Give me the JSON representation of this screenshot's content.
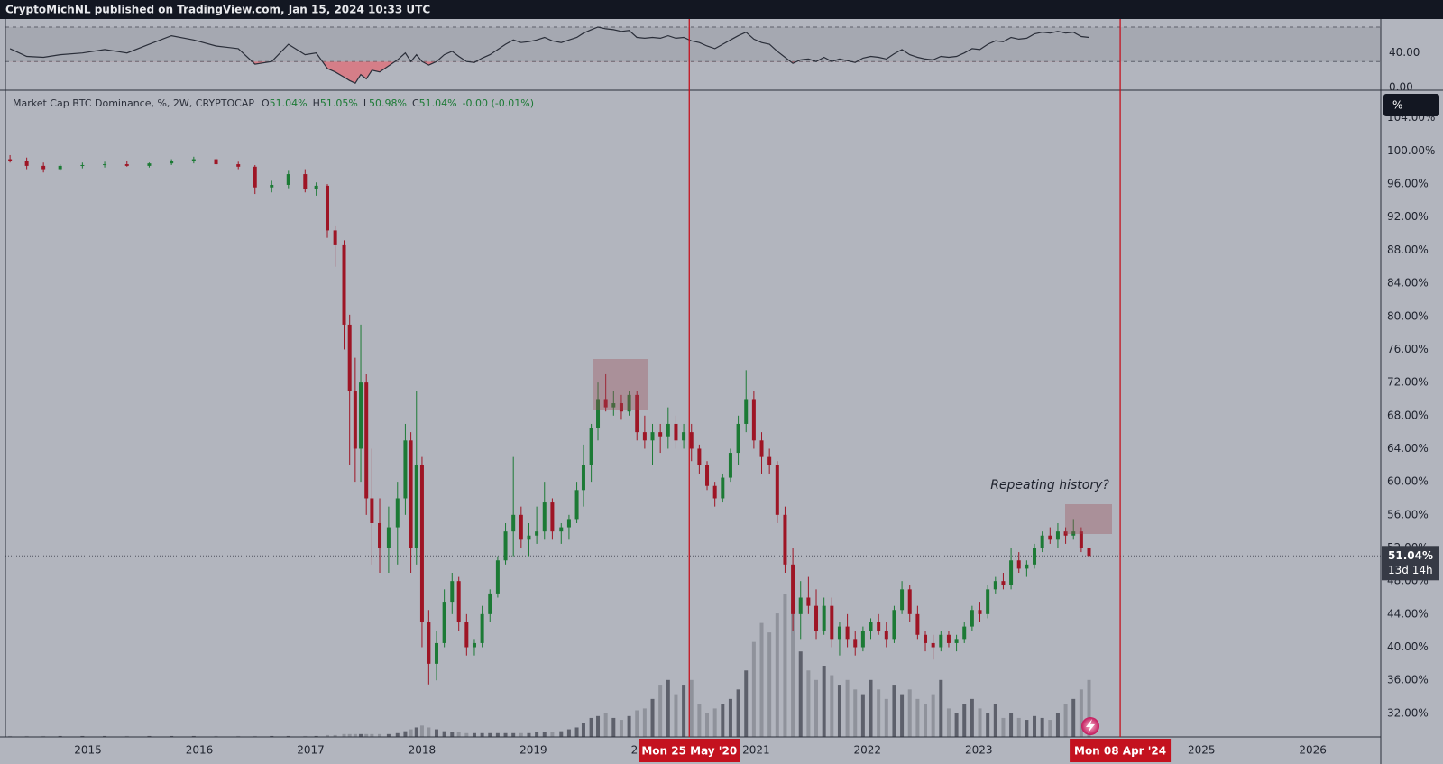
{
  "header": "CryptoMichNL published on TradingView.com, Jan 15, 2024 10:33 UTC",
  "chart_data": {
    "type": "candlestick",
    "symbol": "Market Cap BTC Dominance, %, 2W, CRYPTOCAP",
    "legend_values": [
      {
        "key": "O",
        "text": "51.04%"
      },
      {
        "key": "H",
        "text": "51.05%"
      },
      {
        "key": "L",
        "text": "50.98%"
      },
      {
        "key": "C",
        "text": "51.04%"
      }
    ],
    "change": "-0.00 (-0.01%)",
    "scale_button": "%",
    "x": [
      2014.3,
      2014.45,
      2014.6,
      2014.75,
      2014.95,
      2015.15,
      2015.35,
      2015.55,
      2015.75,
      2015.95,
      2016.15,
      2016.35,
      2016.5,
      2016.65,
      2016.8,
      2016.95,
      2017.05,
      2017.15,
      2017.22,
      2017.3,
      2017.35,
      2017.4,
      2017.45,
      2017.5,
      2017.55,
      2017.62,
      2017.7,
      2017.78,
      2017.85,
      2017.9,
      2017.95,
      2018.0,
      2018.06,
      2018.13,
      2018.2,
      2018.27,
      2018.33,
      2018.4,
      2018.47,
      2018.54,
      2018.61,
      2018.68,
      2018.75,
      2018.82,
      2018.89,
      2018.96,
      2019.03,
      2019.1,
      2019.17,
      2019.25,
      2019.32,
      2019.39,
      2019.45,
      2019.52,
      2019.58,
      2019.65,
      2019.72,
      2019.79,
      2019.86,
      2019.93,
      2020.0,
      2020.07,
      2020.14,
      2020.21,
      2020.28,
      2020.35,
      2020.42,
      2020.49,
      2020.56,
      2020.63,
      2020.7,
      2020.77,
      2020.84,
      2020.91,
      2020.98,
      2021.05,
      2021.12,
      2021.19,
      2021.26,
      2021.33,
      2021.4,
      2021.47,
      2021.54,
      2021.61,
      2021.68,
      2021.75,
      2021.82,
      2021.89,
      2021.96,
      2022.03,
      2022.1,
      2022.17,
      2022.24,
      2022.31,
      2022.38,
      2022.45,
      2022.52,
      2022.59,
      2022.66,
      2022.73,
      2022.8,
      2022.87,
      2022.94,
      2023.01,
      2023.08,
      2023.15,
      2023.22,
      2023.29,
      2023.36,
      2023.43,
      2023.5,
      2023.57,
      2023.64,
      2023.71,
      2023.78,
      2023.85,
      2023.92,
      2023.99
    ],
    "candles": [
      [
        99,
        99.5,
        98.6,
        98.8
      ],
      [
        98.8,
        99.2,
        97.8,
        98.2
      ],
      [
        98.2,
        98.6,
        97.4,
        97.8
      ],
      [
        97.8,
        98.4,
        97.6,
        98.2
      ],
      [
        98.2,
        98.6,
        97.9,
        98.3
      ],
      [
        98.3,
        98.7,
        98.0,
        98.4
      ],
      [
        98.4,
        98.8,
        98.1,
        98.2
      ],
      [
        98.2,
        98.6,
        98.0,
        98.5
      ],
      [
        98.5,
        99.0,
        98.3,
        98.8
      ],
      [
        98.8,
        99.3,
        98.5,
        99.0
      ],
      [
        99.0,
        99.2,
        98.2,
        98.4
      ],
      [
        98.4,
        98.7,
        97.8,
        98.1
      ],
      [
        98.1,
        98.3,
        94.8,
        95.6
      ],
      [
        95.6,
        96.4,
        95.0,
        95.9
      ],
      [
        95.9,
        97.6,
        95.5,
        97.2
      ],
      [
        97.2,
        97.8,
        95.0,
        95.4
      ],
      [
        95.4,
        96.2,
        94.6,
        95.8
      ],
      [
        95.8,
        96.0,
        89.5,
        90.4
      ],
      [
        90.4,
        91.0,
        86.0,
        88.6
      ],
      [
        88.6,
        89.2,
        76.0,
        79.0
      ],
      [
        79.0,
        80.2,
        62.0,
        71.0
      ],
      [
        71.0,
        75.0,
        60.0,
        64.0
      ],
      [
        64.0,
        79.0,
        60.0,
        72.0
      ],
      [
        72.0,
        73.0,
        56.0,
        58.0
      ],
      [
        58.0,
        64.0,
        50.0,
        55.0
      ],
      [
        55.0,
        58.0,
        49.0,
        52.0
      ],
      [
        52.0,
        57.0,
        49.0,
        54.5
      ],
      [
        54.5,
        60.0,
        50.0,
        58.0
      ],
      [
        58.0,
        67.0,
        56.0,
        65.0
      ],
      [
        65.0,
        66.0,
        49.0,
        52.0
      ],
      [
        52.0,
        71.0,
        50.0,
        62.0
      ],
      [
        62.0,
        63.0,
        40.0,
        43.0
      ],
      [
        43.0,
        44.5,
        35.5,
        38.0
      ],
      [
        38.0,
        42.0,
        36.0,
        40.5
      ],
      [
        40.5,
        47.0,
        40.0,
        45.5
      ],
      [
        45.5,
        49.0,
        44.0,
        48.0
      ],
      [
        48.0,
        48.5,
        42.0,
        43.0
      ],
      [
        43.0,
        44.0,
        39.0,
        40.0
      ],
      [
        40.0,
        41.0,
        39.0,
        40.5
      ],
      [
        40.5,
        45.0,
        40.0,
        44.0
      ],
      [
        44.0,
        47.0,
        43.0,
        46.5
      ],
      [
        46.5,
        51.0,
        46.0,
        50.5
      ],
      [
        50.5,
        55.0,
        50.0,
        54.0
      ],
      [
        54.0,
        63.0,
        51.0,
        56.0
      ],
      [
        56.0,
        57.0,
        52.0,
        53.0
      ],
      [
        53.0,
        55.0,
        51.0,
        53.5
      ],
      [
        53.5,
        57.0,
        52.5,
        54.0
      ],
      [
        54.0,
        60.0,
        53.0,
        57.5
      ],
      [
        57.5,
        58.0,
        53.0,
        54.0
      ],
      [
        54.0,
        55.0,
        52.5,
        54.5
      ],
      [
        54.5,
        56.0,
        53.0,
        55.5
      ],
      [
        55.5,
        60.0,
        55.0,
        59.0
      ],
      [
        59.0,
        64.5,
        57.0,
        62.0
      ],
      [
        62.0,
        67.0,
        60.0,
        66.5
      ],
      [
        66.5,
        72.0,
        65.0,
        70.0
      ],
      [
        70.0,
        73.0,
        68.5,
        69.0
      ],
      [
        69.0,
        71.0,
        68.0,
        69.5
      ],
      [
        69.5,
        70.5,
        67.5,
        68.5
      ],
      [
        68.5,
        71.0,
        68.0,
        70.5
      ],
      [
        70.5,
        71.0,
        65.0,
        66.0
      ],
      [
        66.0,
        68.0,
        64.0,
        65.0
      ],
      [
        65.0,
        67.0,
        62.0,
        66.0
      ],
      [
        66.0,
        67.0,
        63.5,
        65.5
      ],
      [
        65.5,
        69.0,
        64.0,
        67.0
      ],
      [
        67.0,
        68.0,
        64.0,
        65.0
      ],
      [
        65.0,
        67.0,
        64.0,
        66.0
      ],
      [
        66.0,
        67.0,
        62.5,
        64.0
      ],
      [
        64.0,
        64.5,
        61.0,
        62.0
      ],
      [
        62.0,
        62.5,
        59.0,
        59.5
      ],
      [
        59.5,
        60.0,
        57.0,
        58.0
      ],
      [
        58.0,
        61.0,
        57.5,
        60.5
      ],
      [
        60.5,
        64.0,
        60.0,
        63.5
      ],
      [
        63.5,
        68.0,
        62.0,
        67.0
      ],
      [
        67.0,
        73.5,
        66.0,
        70.0
      ],
      [
        70.0,
        71.0,
        64.0,
        65.0
      ],
      [
        65.0,
        66.0,
        61.0,
        63.0
      ],
      [
        63.0,
        64.0,
        61.0,
        62.0
      ],
      [
        62.0,
        62.5,
        55.0,
        56.0
      ],
      [
        56.0,
        57.0,
        49.0,
        50.0
      ],
      [
        50.0,
        52.0,
        42.0,
        44.0
      ],
      [
        44.0,
        48.0,
        41.0,
        46.0
      ],
      [
        46.0,
        48.5,
        44.0,
        45.0
      ],
      [
        45.0,
        47.0,
        41.0,
        42.0
      ],
      [
        42.0,
        46.0,
        41.5,
        45.0
      ],
      [
        45.0,
        46.0,
        40.0,
        41.0
      ],
      [
        41.0,
        43.0,
        39.0,
        42.5
      ],
      [
        42.5,
        44.0,
        40.0,
        41.0
      ],
      [
        41.0,
        42.0,
        39.0,
        40.0
      ],
      [
        40.0,
        42.5,
        39.5,
        42.0
      ],
      [
        42.0,
        43.5,
        41.0,
        43.0
      ],
      [
        43.0,
        44.0,
        41.5,
        42.0
      ],
      [
        42.0,
        43.0,
        40.0,
        41.0
      ],
      [
        41.0,
        45.0,
        40.5,
        44.5
      ],
      [
        44.5,
        48.0,
        44.0,
        47.0
      ],
      [
        47.0,
        47.5,
        43.0,
        44.0
      ],
      [
        44.0,
        45.0,
        41.0,
        41.5
      ],
      [
        41.5,
        42.0,
        39.5,
        40.5
      ],
      [
        40.5,
        41.5,
        38.5,
        40.0
      ],
      [
        40.0,
        42.0,
        39.5,
        41.5
      ],
      [
        41.5,
        42.0,
        40.0,
        40.5
      ],
      [
        40.5,
        41.5,
        39.5,
        41.0
      ],
      [
        41.0,
        43.0,
        40.5,
        42.5
      ],
      [
        42.5,
        45.0,
        42.0,
        44.5
      ],
      [
        44.5,
        45.5,
        43.0,
        44.0
      ],
      [
        44.0,
        47.5,
        43.5,
        47.0
      ],
      [
        47.0,
        48.5,
        46.5,
        48.0
      ],
      [
        48.0,
        49.0,
        47.0,
        47.5
      ],
      [
        47.5,
        52.0,
        47.0,
        50.5
      ],
      [
        50.5,
        51.5,
        49.0,
        49.5
      ],
      [
        49.5,
        50.5,
        48.5,
        50.0
      ],
      [
        50.0,
        52.5,
        49.5,
        52.0
      ],
      [
        52.0,
        54.0,
        51.5,
        53.5
      ],
      [
        53.5,
        54.5,
        52.5,
        53.0
      ],
      [
        53.0,
        55.0,
        52.0,
        54.0
      ],
      [
        54.0,
        54.5,
        52.5,
        53.5
      ],
      [
        53.5,
        55.5,
        53.0,
        54.0
      ],
      [
        54.0,
        54.5,
        51.5,
        52.0
      ],
      [
        52.0,
        52.3,
        50.9,
        51.04
      ]
    ],
    "colors": {
      "up": "#1c7a35",
      "down": "#9e1525"
    },
    "volume": [
      1,
      1,
      1,
      1,
      1,
      1,
      1,
      1,
      1,
      1,
      1,
      1,
      1,
      1,
      1,
      1,
      1,
      2,
      2,
      3,
      3,
      3,
      3,
      3,
      3,
      3,
      3,
      4,
      6,
      8,
      10,
      12,
      10,
      8,
      6,
      5,
      5,
      4,
      4,
      4,
      4,
      4,
      4,
      4,
      4,
      4,
      5,
      5,
      5,
      6,
      8,
      10,
      15,
      20,
      22,
      25,
      20,
      18,
      22,
      28,
      30,
      40,
      55,
      60,
      45,
      55,
      60,
      35,
      25,
      30,
      35,
      40,
      50,
      70,
      100,
      120,
      110,
      130,
      150,
      140,
      90,
      70,
      60,
      75,
      65,
      55,
      60,
      50,
      45,
      60,
      50,
      40,
      55,
      45,
      50,
      40,
      35,
      45,
      60,
      30,
      25,
      35,
      40,
      30,
      25,
      35,
      20,
      25,
      20,
      18,
      22,
      20,
      18,
      25,
      35,
      40,
      50,
      60
    ],
    "volume_colors": {
      "up": "#5d606b",
      "down": "#8f929b"
    },
    "xlim": [
      2014.21,
      2026.61
    ],
    "xticks": [
      2015,
      2016,
      2017,
      2018,
      2019,
      2020,
      2021,
      2022,
      2023,
      2024,
      2025,
      2026
    ],
    "ylim": [
      29.15,
      107.35
    ],
    "yticks": [
      {
        "value": 32,
        "label": "32.00%"
      },
      {
        "value": 36,
        "label": "36.00%"
      },
      {
        "value": 40,
        "label": "40.00%"
      },
      {
        "value": 44,
        "label": "44.00%"
      },
      {
        "value": 48,
        "label": "48.00%"
      },
      {
        "value": 52,
        "label": "52.00%"
      },
      {
        "value": 56,
        "label": "56.00%"
      },
      {
        "value": 60,
        "label": "60.00%"
      },
      {
        "value": 64,
        "label": "64.00%"
      },
      {
        "value": 68,
        "label": "68.00%"
      },
      {
        "value": 72,
        "label": "72.00%"
      },
      {
        "value": 76,
        "label": "76.00%"
      },
      {
        "value": 80,
        "label": "80.00%"
      },
      {
        "value": 84,
        "label": "84.00%"
      },
      {
        "value": 88,
        "label": "88.00%"
      },
      {
        "value": 92,
        "label": "92.00%"
      },
      {
        "value": 96,
        "label": "96.00%"
      },
      {
        "value": 100,
        "label": "100.00%"
      },
      {
        "value": 104,
        "label": "104.00%"
      }
    ],
    "last": {
      "value": 51.04,
      "label": "51.04%",
      "countdown": "13d 14h"
    },
    "markers": [
      {
        "x": 2020.4,
        "label": "Mon 25 May '20"
      },
      {
        "x": 2024.27,
        "label": "Mon 08 Apr '24"
      }
    ],
    "marker_color": "#c4121f",
    "annotation": "Repeating history?",
    "rsi": {
      "values": [
        45,
        36,
        35,
        38,
        40,
        44,
        40,
        50,
        60,
        55,
        48,
        45,
        27,
        30,
        50,
        38,
        40,
        22,
        18,
        12,
        8,
        5,
        15,
        10,
        20,
        18,
        25,
        32,
        40,
        30,
        38,
        30,
        26,
        30,
        38,
        42,
        36,
        30,
        29,
        34,
        38,
        44,
        50,
        55,
        52,
        53,
        55,
        58,
        54,
        52,
        55,
        58,
        63,
        67,
        70,
        68,
        67,
        65,
        66,
        58,
        57,
        58,
        57,
        60,
        57,
        58,
        54,
        52,
        48,
        45,
        50,
        55,
        60,
        64,
        56,
        52,
        50,
        42,
        35,
        28,
        32,
        33,
        30,
        35,
        30,
        33,
        31,
        29,
        34,
        36,
        35,
        33,
        39,
        44,
        38,
        35,
        33,
        32,
        36,
        35,
        36,
        40,
        45,
        44,
        50,
        54,
        53,
        58,
        56,
        57,
        62,
        64,
        63,
        65,
        63,
        64,
        59,
        58
      ],
      "ylim": [
        -3.2,
        79.4
      ],
      "yticks": [
        {
          "value": 40,
          "label": "40.00"
        },
        {
          "value": 0,
          "label": "0.00"
        }
      ],
      "bands": [
        30,
        70
      ],
      "color": "#2a2e39",
      "oversold_color": "#e06c75"
    }
  }
}
